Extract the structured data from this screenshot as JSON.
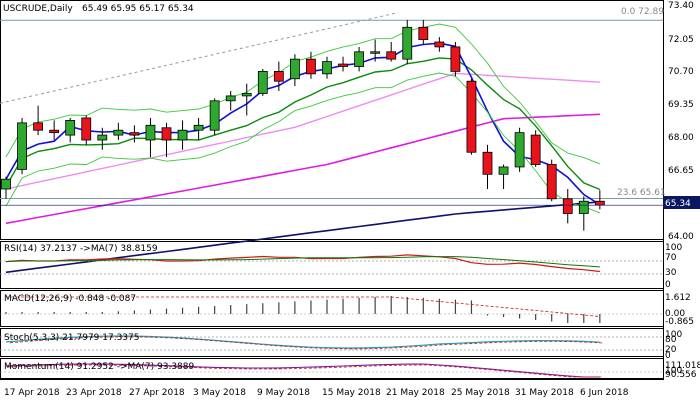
{
  "header": {
    "symbol": "USCRUDE,Daily",
    "ohlc": "65.49 65.95 65.17 65.34"
  },
  "price_axis_labels": [
    "73.40",
    "72.05",
    "70.70",
    "69.35",
    "68.00",
    "66.65",
    "64.00"
  ],
  "current_price_label": "65.34",
  "fib_labels": {
    "top": "0.0 72.89",
    "mid": "23.6 65.61"
  },
  "date_labels": [
    "17 Apr 2018",
    "23 Apr 2018",
    "27 Apr 2018",
    "3 May 2018",
    "9 May 2018",
    "15 May 2018",
    "21 May 2018",
    "25 May 2018",
    "31 May 2018",
    "6 Jun 2018"
  ],
  "indicators": {
    "rsi": {
      "label": "RSI(14) 37.2137  ->MA(7) 38.8159",
      "axis": [
        "100",
        "70",
        "30",
        "0"
      ]
    },
    "macd": {
      "label": "MACD(12,26,9) -0.848 -0.087",
      "axis": [
        "1.612",
        "0.00",
        "-0.865"
      ]
    },
    "stoch": {
      "label": "Stoch(5,3,3) 21.7979 17.3375",
      "axis": [
        "100",
        "80",
        "20",
        "0"
      ]
    },
    "momentum": {
      "label": "Momentum(14) 91.2952  ->MA(7) 93.3889",
      "axis": [
        "111.0183",
        "100",
        "90.556"
      ]
    }
  },
  "colors": {
    "bull": "#2ea82e",
    "bear": "#e8141c",
    "ma_blue": "#1010d8",
    "ma_green": "#0a8a0a",
    "ma_magenta": "#e01ae0",
    "ma_pink": "#f08cf0",
    "navy": "#10106e",
    "bb_green": "#3cc83c",
    "current_box": "#0b1760"
  },
  "chart_data": {
    "type": "candlestick",
    "title": "USCRUDE,Daily",
    "ylim": [
      63.7,
      73.4
    ],
    "candles": [
      {
        "o": 66.0,
        "h": 66.5,
        "l": 65.6,
        "c": 66.4
      },
      {
        "o": 66.8,
        "h": 68.9,
        "l": 66.6,
        "c": 68.7
      },
      {
        "o": 68.7,
        "h": 69.4,
        "l": 68.2,
        "c": 68.4
      },
      {
        "o": 68.4,
        "h": 68.8,
        "l": 68.0,
        "c": 68.3
      },
      {
        "o": 68.2,
        "h": 68.9,
        "l": 67.9,
        "c": 68.8
      },
      {
        "o": 68.9,
        "h": 69.0,
        "l": 67.8,
        "c": 68.0
      },
      {
        "o": 68.0,
        "h": 68.5,
        "l": 67.6,
        "c": 68.2
      },
      {
        "o": 68.2,
        "h": 68.7,
        "l": 68.0,
        "c": 68.4
      },
      {
        "o": 68.3,
        "h": 68.6,
        "l": 67.9,
        "c": 68.2
      },
      {
        "o": 68.0,
        "h": 68.9,
        "l": 67.3,
        "c": 68.6
      },
      {
        "o": 68.5,
        "h": 68.7,
        "l": 67.3,
        "c": 68.0
      },
      {
        "o": 68.0,
        "h": 68.8,
        "l": 67.6,
        "c": 68.4
      },
      {
        "o": 68.4,
        "h": 68.9,
        "l": 68.0,
        "c": 68.6
      },
      {
        "o": 68.4,
        "h": 69.7,
        "l": 68.2,
        "c": 69.6
      },
      {
        "o": 69.6,
        "h": 70.0,
        "l": 69.2,
        "c": 69.8
      },
      {
        "o": 69.8,
        "h": 70.3,
        "l": 69.0,
        "c": 69.9
      },
      {
        "o": 69.9,
        "h": 70.9,
        "l": 69.8,
        "c": 70.8
      },
      {
        "o": 70.8,
        "h": 71.2,
        "l": 70.0,
        "c": 70.4
      },
      {
        "o": 70.5,
        "h": 71.5,
        "l": 70.2,
        "c": 71.3
      },
      {
        "o": 71.3,
        "h": 71.6,
        "l": 70.5,
        "c": 70.7
      },
      {
        "o": 70.7,
        "h": 71.4,
        "l": 70.5,
        "c": 71.2
      },
      {
        "o": 71.1,
        "h": 71.4,
        "l": 70.8,
        "c": 71.0
      },
      {
        "o": 71.0,
        "h": 71.8,
        "l": 70.8,
        "c": 71.6
      },
      {
        "o": 71.6,
        "h": 72.1,
        "l": 71.2,
        "c": 71.6
      },
      {
        "o": 71.6,
        "h": 72.0,
        "l": 71.2,
        "c": 71.3
      },
      {
        "o": 71.3,
        "h": 72.9,
        "l": 71.1,
        "c": 72.6
      },
      {
        "o": 72.6,
        "h": 72.9,
        "l": 71.9,
        "c": 72.1
      },
      {
        "o": 72.0,
        "h": 72.2,
        "l": 71.6,
        "c": 71.8
      },
      {
        "o": 71.8,
        "h": 72.0,
        "l": 70.6,
        "c": 70.8
      },
      {
        "o": 70.4,
        "h": 70.5,
        "l": 67.4,
        "c": 67.5
      },
      {
        "o": 67.5,
        "h": 67.8,
        "l": 66.0,
        "c": 66.6
      },
      {
        "o": 66.6,
        "h": 67.0,
        "l": 66.0,
        "c": 66.9
      },
      {
        "o": 66.9,
        "h": 68.5,
        "l": 66.7,
        "c": 68.3
      },
      {
        "o": 68.2,
        "h": 68.4,
        "l": 66.9,
        "c": 67.0
      },
      {
        "o": 67.0,
        "h": 67.2,
        "l": 65.5,
        "c": 65.6
      },
      {
        "o": 65.6,
        "h": 66.0,
        "l": 64.6,
        "c": 65.0
      },
      {
        "o": 65.0,
        "h": 65.7,
        "l": 64.3,
        "c": 65.5
      },
      {
        "o": 65.5,
        "h": 65.95,
        "l": 65.17,
        "c": 65.34
      }
    ]
  }
}
